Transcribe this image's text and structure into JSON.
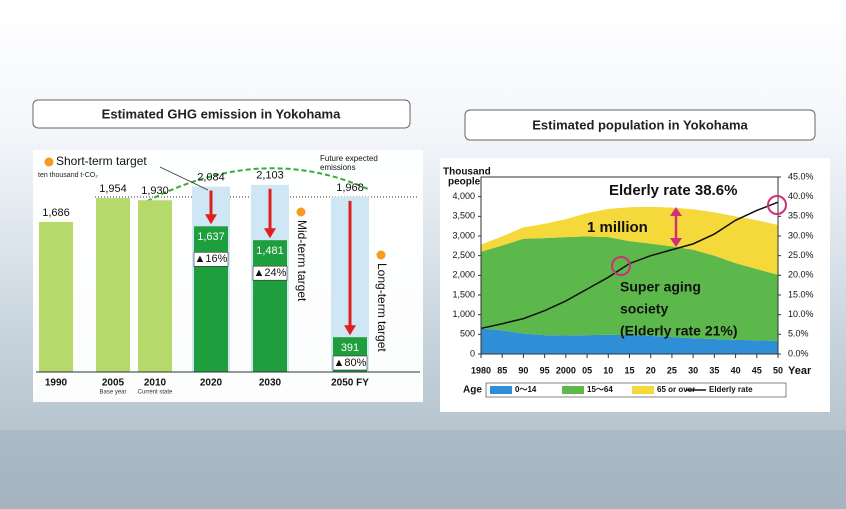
{
  "chart_data": [
    {
      "type": "bar",
      "title": "Estimated GHG emission in Yokohama",
      "unit_label": "ten thousand t-CO₂",
      "categories": [
        "1990",
        "2005",
        "2010",
        "2020",
        "2030",
        "2050 FY"
      ],
      "category_notes": [
        null,
        "Base year",
        "Current state",
        null,
        null,
        null
      ],
      "values": [
        1686,
        1954,
        1930,
        null,
        null,
        null
      ],
      "value_labels": [
        "1,686",
        "1,954",
        "1,930",
        null,
        null,
        null
      ],
      "color": "#b5d96b",
      "expected_values": [
        null,
        null,
        null,
        2084,
        2103,
        1968
      ],
      "expected_value_labels": [
        null,
        null,
        null,
        "2,084",
        "2,103",
        "1,968"
      ],
      "expected_color": "#cfe6f5",
      "target_values": [
        null,
        null,
        null,
        1637,
        1481,
        391
      ],
      "target_value_labels": [
        null,
        null,
        null,
        "1,637",
        "1,481",
        "391"
      ],
      "target_color": "#1e9e3c",
      "reduction_labels": [
        null,
        null,
        null,
        "▲16%",
        "▲24%",
        "▲80%"
      ],
      "annotations": {
        "short_term": "Short-term target",
        "mid_term": "Mid-term target",
        "long_term": "Long-term target",
        "expected": [
          "Future expected",
          "emissions"
        ]
      }
    },
    {
      "type": "area",
      "title": "Estimated population in Yokohama",
      "ylabel": [
        "Thousand",
        "people"
      ],
      "xlabel": "Year",
      "legend_title": "Age",
      "x": [
        1980,
        1985,
        1990,
        1995,
        2000,
        2005,
        2010,
        2015,
        2020,
        2025,
        2030,
        2035,
        2040,
        2045,
        2050
      ],
      "xlim": [
        1980,
        2050
      ],
      "xticks": [
        {
          "value": 1980,
          "label": "1980"
        },
        {
          "value": 1985,
          "label": "85"
        },
        {
          "value": 1990,
          "label": "90"
        },
        {
          "value": 1995,
          "label": "95"
        },
        {
          "value": 2000,
          "label": "2000"
        },
        {
          "value": 2005,
          "label": "05"
        },
        {
          "value": 2010,
          "label": "10"
        },
        {
          "value": 2015,
          "label": "15"
        },
        {
          "value": 2020,
          "label": "20"
        },
        {
          "value": 2025,
          "label": "25"
        },
        {
          "value": 2030,
          "label": "30"
        },
        {
          "value": 2035,
          "label": "35"
        },
        {
          "value": 2040,
          "label": "40"
        },
        {
          "value": 2045,
          "label": "45"
        },
        {
          "value": 2050,
          "label": "50"
        }
      ],
      "ylim": [
        0,
        4500
      ],
      "yticks": [
        0,
        500,
        {
          "value": 1000,
          "label": "1,000"
        },
        {
          "value": 1500,
          "label": "1,500"
        },
        {
          "value": 2000,
          "label": "2,000"
        },
        {
          "value": 2500,
          "label": "2,500"
        },
        {
          "value": 3000,
          "label": "3,000"
        },
        {
          "value": 3500,
          "label": "3,500"
        },
        {
          "value": 4000,
          "label": "4,000"
        }
      ],
      "y2lim": [
        0,
        45
      ],
      "y2ticks": [
        {
          "value": 0,
          "label": "0.0%"
        },
        {
          "value": 5,
          "label": "5.0%"
        },
        {
          "value": 10,
          "label": "10.0%"
        },
        {
          "value": 15,
          "label": "15.0%"
        },
        {
          "value": 20,
          "label": "20.0%"
        },
        {
          "value": 25,
          "label": "25.0%"
        },
        {
          "value": 30,
          "label": "30.0%"
        },
        {
          "value": 35,
          "label": "35.0%"
        },
        {
          "value": 40,
          "label": "40.0%"
        },
        {
          "value": 45,
          "label": "45.0%"
        }
      ],
      "series": [
        {
          "name": "0～14",
          "color": "#2e8fd6",
          "values": [
            650,
            600,
            520,
            480,
            470,
            480,
            490,
            480,
            460,
            430,
            400,
            380,
            360,
            350,
            330
          ]
        },
        {
          "name": "15～64",
          "color": "#5cb84a",
          "values": [
            1950,
            2160,
            2410,
            2465,
            2500,
            2510,
            2480,
            2390,
            2345,
            2305,
            2250,
            2120,
            1950,
            1810,
            1684
          ]
        },
        {
          "name": "65 or over",
          "color": "#f5d93a",
          "values": [
            180,
            230,
            290,
            365,
            460,
            590,
            720,
            860,
            935,
            985,
            1030,
            1100,
            1190,
            1240,
            1266
          ]
        },
        {
          "name": "Elderly rate",
          "color": "#111111",
          "type": "line",
          "axis": "y2",
          "values": [
            6.5,
            7.7,
            9.0,
            11.0,
            13.5,
            16.5,
            19.5,
            23,
            25,
            26.5,
            28,
            30.5,
            34,
            36.5,
            38.6
          ]
        }
      ],
      "annotations": {
        "elderly": "Elderly rate 38.6%",
        "million": "1 million",
        "aging": [
          "Super aging",
          "society",
          "(Elderly rate 21%)"
        ]
      }
    }
  ]
}
